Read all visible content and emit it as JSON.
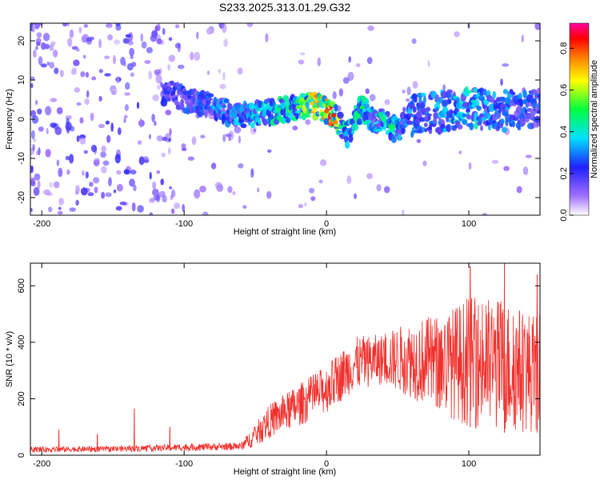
{
  "chart_data": [
    {
      "type": "heatmap",
      "title": "S233.2025.313.01.29.G32",
      "xlabel": "Height of straight line (km)",
      "ylabel": "Frequency (Hz)",
      "xlim": [
        -208,
        150
      ],
      "ylim": [
        -24.5,
        24.5
      ],
      "xticks": [
        -200,
        -100,
        0,
        100
      ],
      "yticks": [
        -20,
        -10,
        0,
        10,
        20
      ],
      "colorbar": {
        "label": "Normalized spectral amplitude",
        "range": [
          0.0,
          0.92
        ],
        "ticks": [
          0.0,
          0.2,
          0.4,
          0.6,
          0.8
        ],
        "tick_labels": [
          "0.0",
          "0.2",
          "0.4",
          "0.6",
          "0.8"
        ]
      },
      "ridge": {
        "x": [
          -110,
          -100,
          -80,
          -60,
          -40,
          -20,
          -10,
          0,
          5,
          10,
          15,
          20,
          25,
          30,
          35,
          40,
          45,
          50,
          55,
          60,
          80,
          100,
          120,
          150
        ],
        "freq": [
          7,
          5,
          3,
          1,
          2,
          3,
          4,
          2,
          1,
          -2,
          -4,
          0,
          3,
          1,
          -1,
          0,
          -2,
          -3,
          0,
          1,
          2,
          3,
          2,
          3
        ],
        "amplitude": [
          0.25,
          0.3,
          0.35,
          0.4,
          0.45,
          0.6,
          0.75,
          0.85,
          0.9,
          0.5,
          0.45,
          0.45,
          0.55,
          0.45,
          0.4,
          0.5,
          0.55,
          0.4,
          0.35,
          0.35,
          0.4,
          0.45,
          0.35,
          0.3
        ]
      }
    },
    {
      "type": "line",
      "xlabel": "Height of straight line (km)",
      "ylabel": "SNR (10 * v/v)",
      "xlim": [
        -208,
        150
      ],
      "ylim": [
        0,
        680
      ],
      "xticks": [
        -200,
        -100,
        0,
        100
      ],
      "yticks": [
        0,
        200,
        400,
        600
      ],
      "color": "#f0302c",
      "envelope": {
        "x": [
          -208,
          -150,
          -100,
          -60,
          -50,
          -40,
          -20,
          0,
          20,
          40,
          60,
          80,
          100,
          120,
          150
        ],
        "low": [
          10,
          12,
          15,
          18,
          30,
          60,
          100,
          150,
          230,
          250,
          200,
          150,
          100,
          80,
          80
        ],
        "high": [
          30,
          32,
          40,
          45,
          110,
          180,
          250,
          320,
          420,
          430,
          480,
          500,
          560,
          560,
          500
        ]
      },
      "spikes": [
        {
          "x": -188,
          "y": 90
        },
        {
          "x": -161,
          "y": 75
        },
        {
          "x": -135,
          "y": 165
        },
        {
          "x": -110,
          "y": 100
        },
        {
          "x": 101,
          "y": 670
        },
        {
          "x": 125,
          "y": 680
        },
        {
          "x": 148,
          "y": 640
        }
      ]
    }
  ]
}
